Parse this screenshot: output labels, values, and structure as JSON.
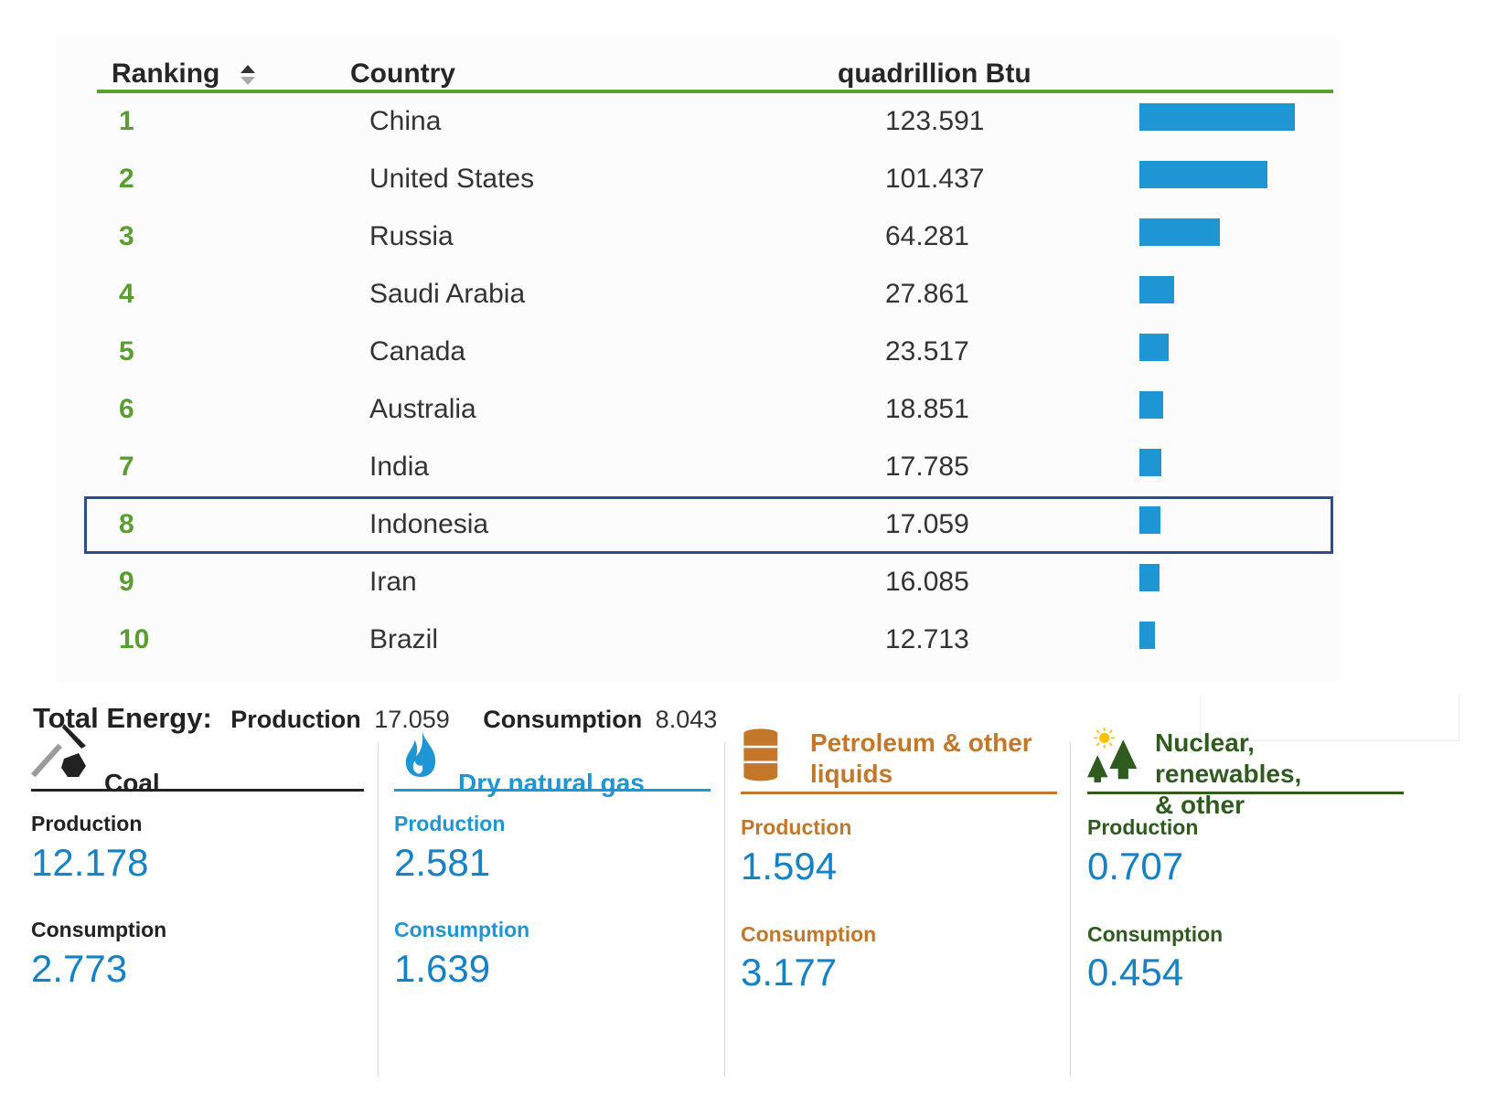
{
  "table": {
    "headers": {
      "ranking": "Ranking",
      "country": "Country",
      "value": "quadrillion Btu"
    },
    "max_value": 123.591,
    "selected_rank": "8",
    "rows": [
      {
        "rank": "1",
        "country": "China",
        "value": "123.591"
      },
      {
        "rank": "2",
        "country": "United States",
        "value": "101.437"
      },
      {
        "rank": "3",
        "country": "Russia",
        "value": "64.281"
      },
      {
        "rank": "4",
        "country": "Saudi Arabia",
        "value": "27.861"
      },
      {
        "rank": "5",
        "country": "Canada",
        "value": "23.517"
      },
      {
        "rank": "6",
        "country": "Australia",
        "value": "18.851"
      },
      {
        "rank": "7",
        "country": "India",
        "value": "17.785"
      },
      {
        "rank": "8",
        "country": "Indonesia",
        "value": "17.059"
      },
      {
        "rank": "9",
        "country": "Iran",
        "value": "16.085"
      },
      {
        "rank": "10",
        "country": "Brazil",
        "value": "12.713"
      }
    ]
  },
  "total_energy": {
    "title": "Total Energy:",
    "production_label": "Production",
    "production_value": "17.059",
    "consumption_label": "Consumption",
    "consumption_value": "8.043"
  },
  "cards": [
    {
      "title": "Coal",
      "icon": "pickaxe-coal-icon",
      "color": "#222222",
      "production_label": "Production",
      "production": "12.178",
      "consumption_label": "Consumption",
      "consumption": "2.773"
    },
    {
      "title": "Dry natural gas",
      "icon": "flame-icon",
      "color": "#1d96d3",
      "production_label": "Production",
      "production": "2.581",
      "consumption_label": "Consumption",
      "consumption": "1.639"
    },
    {
      "title_line1": "Petroleum & other",
      "title_line2": "liquids",
      "icon": "oil-barrel-icon",
      "color": "#c2772a",
      "production_label": "Production",
      "production": "1.594",
      "consumption_label": "Consumption",
      "consumption": "3.177"
    },
    {
      "title_line1": "Nuclear, renewables,",
      "title_line2": "& other",
      "icon": "sun-trees-icon",
      "color": "#2f5c1e",
      "production_label": "Production",
      "production": "0.707",
      "consumption_label": "Consumption",
      "consumption": "0.454"
    }
  ],
  "colors": {
    "rank": "#5a9e32",
    "bar": "#1d96d3",
    "value_number": "#1681c4",
    "selected_outline": "#2d4e86"
  }
}
